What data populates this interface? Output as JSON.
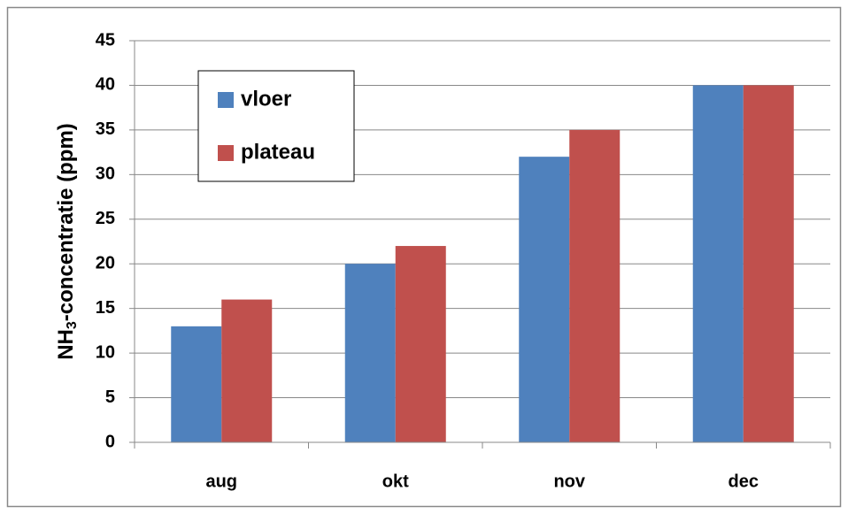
{
  "chart_data": {
    "type": "bar",
    "y_label": "NH3-concentratie (ppm)",
    "categories": [
      "aug",
      "okt",
      "nov",
      "dec"
    ],
    "series": [
      {
        "name": "vloer",
        "color": "#4f81bd",
        "values": [
          13,
          20,
          32,
          40
        ]
      },
      {
        "name": "plateau",
        "color": "#c0504d",
        "values": [
          16,
          22,
          35,
          40
        ]
      }
    ],
    "ylim": [
      0,
      45
    ],
    "yticks": [
      0,
      5,
      10,
      15,
      20,
      25,
      30,
      35,
      40,
      45
    ],
    "grid": true,
    "legend": "upper left"
  }
}
